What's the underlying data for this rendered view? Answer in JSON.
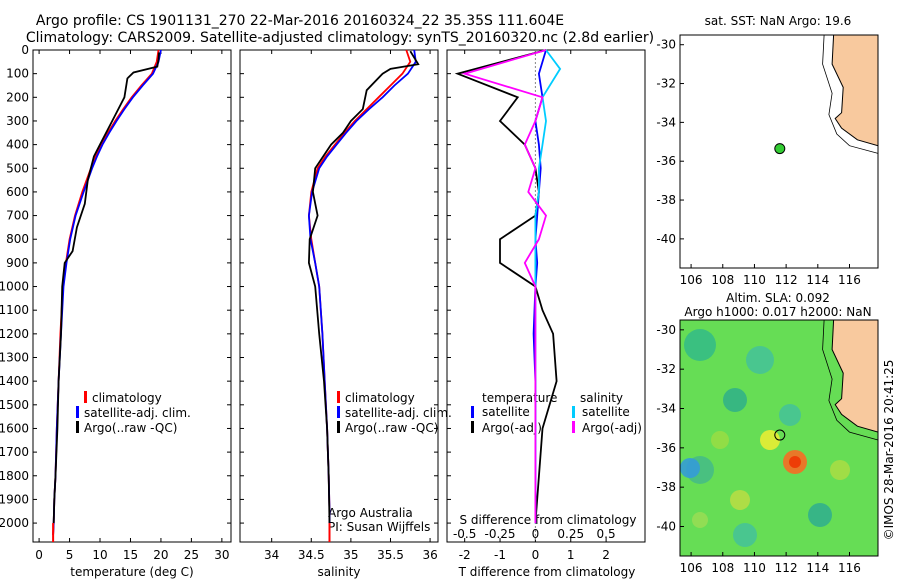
{
  "header": {
    "line1": "Argo profile: CS 1901131_270 22-Mar-2016 20160324_22 35.35S 111.604E",
    "line2": "Climatology: CARS2009. Satellite-adjusted climatology: synTS_20160320.nc (2.8d earlier)"
  },
  "depth_ticks": [
    "0",
    "100",
    "200",
    "300",
    "400",
    "500",
    "600",
    "700",
    "800",
    "900",
    "1000",
    "1100",
    "1200",
    "1300",
    "1400",
    "1500",
    "1600",
    "1700",
    "1800",
    "1900",
    "2000"
  ],
  "colors": {
    "climatology": "#ff0000",
    "satellite": "#0000ff",
    "argo": "#000000",
    "sat_salinity": "#00ccff",
    "argo_salinity": "#ff00ff",
    "land": "#f8c99e",
    "float_marker": "#33cc33"
  },
  "legend": {
    "climatology": "climatology",
    "satellite_adj": "satellite-adj. clim.",
    "argo_raw": "Argo(..raw -QC)",
    "temperature": "temperature",
    "salinity": "salinity",
    "satellite": "satellite",
    "argo_adj": "Argo(-adj)"
  },
  "notes": {
    "agency": "Argo Australia",
    "pi": "PI: Susan Wijffels",
    "s_diff_label": "S difference from climatology",
    "timestamp": "©IMOS 28-Mar-2016 20:41:25"
  },
  "chart_data": [
    {
      "type": "line",
      "xlabel": "temperature (deg C)",
      "xlim": [
        -1,
        31.5
      ],
      "ylim": [
        2080,
        0
      ],
      "xticks": [
        "0",
        "5",
        "10",
        "15",
        "20",
        "25",
        "30"
      ],
      "series": [
        {
          "name": "climatology",
          "x": [
            19.6,
            19.3,
            18.5,
            16.8,
            15.2,
            13.8,
            12.5,
            11.3,
            10.2,
            9.3,
            8.5,
            7.1,
            5.9,
            5.0,
            4.4,
            3.9,
            3.5,
            3.2,
            2.9,
            2.7,
            2.5,
            2.4,
            2.3
          ],
          "y": [
            0,
            50,
            100,
            150,
            200,
            250,
            300,
            350,
            400,
            450,
            500,
            600,
            700,
            800,
            900,
            1000,
            1200,
            1400,
            1600,
            1800,
            1900,
            2000,
            2050
          ]
        },
        {
          "name": "satellite-adj. clim.",
          "x": [
            20.0,
            19.6,
            18.7,
            17.0,
            15.4,
            14.0,
            12.7,
            11.5,
            10.4,
            9.5,
            8.7,
            7.3,
            6.0,
            5.1,
            4.5,
            4.0,
            3.6,
            3.2,
            2.9,
            2.7,
            2.5,
            2.4,
            2.3
          ],
          "y": [
            0,
            50,
            100,
            150,
            200,
            250,
            300,
            350,
            400,
            450,
            500,
            600,
            700,
            800,
            900,
            1000,
            1200,
            1400,
            1600,
            1800,
            1900,
            2000,
            2050
          ]
        },
        {
          "name": "Argo(..raw -QC)",
          "x": [
            19.7,
            19.6,
            19.4,
            15.5,
            14.5,
            14.0,
            12.0,
            11.0,
            10.0,
            9.0,
            8.0,
            7.5,
            6.2,
            5.5,
            4.2,
            3.8,
            3.6,
            3.2,
            3.0,
            2.7,
            2.5,
            2.4
          ],
          "y": [
            10,
            40,
            70,
            95,
            120,
            200,
            300,
            350,
            400,
            450,
            550,
            650,
            750,
            850,
            900,
            1000,
            1200,
            1400,
            1600,
            1800,
            1900,
            2000
          ]
        }
      ]
    },
    {
      "type": "line",
      "xlabel": "salinity",
      "xlim": [
        33.6,
        36.1
      ],
      "ylim": [
        2080,
        0
      ],
      "xticks": [
        "34",
        "34.5",
        "35",
        "35.5",
        "36"
      ],
      "series": [
        {
          "name": "climatology",
          "x": [
            35.7,
            35.75,
            35.65,
            35.5,
            35.35,
            35.2,
            35.05,
            34.92,
            34.8,
            34.68,
            34.58,
            34.5,
            34.47,
            34.5,
            34.55,
            34.6,
            34.64,
            34.67,
            34.7,
            34.72,
            34.73,
            34.73
          ],
          "y": [
            0,
            50,
            100,
            150,
            200,
            250,
            300,
            350,
            400,
            450,
            500,
            600,
            700,
            800,
            900,
            1000,
            1200,
            1400,
            1600,
            1800,
            1950,
            2050
          ]
        },
        {
          "name": "satellite-adj. clim.",
          "x": [
            35.8,
            35.82,
            35.72,
            35.55,
            35.4,
            35.23,
            35.07,
            34.94,
            34.82,
            34.7,
            34.6,
            34.51,
            34.47,
            34.49,
            34.55,
            34.6,
            34.64,
            34.67,
            34.7,
            34.72,
            34.73,
            34.73
          ],
          "y": [
            0,
            50,
            100,
            150,
            200,
            250,
            300,
            350,
            400,
            450,
            500,
            600,
            700,
            800,
            900,
            1000,
            1200,
            1400,
            1600,
            1800,
            1950,
            2050
          ]
        },
        {
          "name": "Argo(..raw -QC)",
          "x": [
            35.75,
            35.85,
            35.5,
            35.4,
            35.2,
            35.15,
            35.0,
            34.9,
            34.75,
            34.65,
            34.55,
            34.52,
            34.58,
            34.48,
            34.47,
            34.55,
            34.6,
            34.66,
            34.7,
            34.72,
            34.73
          ],
          "y": [
            5,
            60,
            80,
            100,
            170,
            250,
            300,
            350,
            400,
            450,
            500,
            600,
            700,
            800,
            900,
            1000,
            1200,
            1400,
            1600,
            1800,
            2000
          ]
        }
      ]
    },
    {
      "type": "line",
      "xlabel": "T difference from climatology",
      "x2label": "S difference from climatology",
      "xlim": [
        -2.5,
        3.1
      ],
      "ylim": [
        2080,
        0
      ],
      "xticks": [
        "-2",
        "-1",
        "0",
        "1",
        "2"
      ],
      "x2ticks": [
        "-0.5",
        "-0.25",
        "0",
        "0.25",
        "0.5"
      ],
      "series": [
        {
          "name": "temperature satellite",
          "x": [
            0.3,
            0.2,
            0.1,
            0.2,
            0.0,
            0.1,
            0.15,
            0.1,
            0.05,
            0.0,
            0.05,
            0.0,
            -0.05,
            0.0,
            0.0,
            0.0
          ],
          "y": [
            0,
            50,
            100,
            200,
            300,
            400,
            500,
            600,
            700,
            800,
            900,
            1000,
            1200,
            1400,
            1600,
            2000
          ]
        },
        {
          "name": "temperature Argo(-adj)",
          "x": [
            0.3,
            -2.2,
            -0.5,
            -1.0,
            -0.3,
            0.0,
            0.1,
            0.0,
            -1.0,
            -1.0,
            0.0,
            0.2,
            0.5,
            0.6,
            0.2,
            0.0
          ],
          "y": [
            0,
            100,
            200,
            300,
            400,
            500,
            600,
            700,
            800,
            900,
            1000,
            1100,
            1200,
            1400,
            1600,
            2000
          ]
        },
        {
          "name": "salinity satellite",
          "x": [
            0.3,
            0.7,
            0.2,
            0.3,
            0.2,
            0.1,
            0.1,
            0.0,
            0.0,
            0.0,
            0.0,
            0.0,
            0.0
          ],
          "y": [
            0,
            80,
            200,
            300,
            400,
            500,
            600,
            700,
            800,
            1000,
            1200,
            1600,
            2000
          ]
        },
        {
          "name": "salinity Argo(-adj)",
          "x": [
            0.3,
            -2.0,
            0.2,
            0.0,
            -0.3,
            0.0,
            -0.2,
            0.3,
            0.1,
            -0.3,
            0.0,
            0.0,
            0.0
          ],
          "y": [
            0,
            100,
            200,
            300,
            400,
            500,
            600,
            700,
            800,
            900,
            1000,
            1400,
            2000
          ]
        }
      ]
    },
    {
      "type": "scatter",
      "title": "sat. SST: NaN Argo: 19.6",
      "xlim": [
        105.3,
        117.8
      ],
      "ylim": [
        -41.5,
        -29.5
      ],
      "xticks": [
        "106",
        "108",
        "110",
        "112",
        "114",
        "116"
      ],
      "yticks": [
        "-30",
        "-32",
        "-34",
        "-36",
        "-38",
        "-40"
      ],
      "points": [
        {
          "x": 111.6,
          "y": -35.35
        }
      ]
    },
    {
      "type": "heatmap",
      "title": "Altim. SLA: 0.092",
      "subtitle": "Argo h1000: 0.017 h2000: NaN",
      "xlim": [
        105.3,
        117.8
      ],
      "ylim": [
        -41.5,
        -29.5
      ],
      "xticks": [
        "106",
        "108",
        "110",
        "112",
        "114",
        "116"
      ],
      "yticks": [
        "-30",
        "-32",
        "-34",
        "-36",
        "-38",
        "-40"
      ],
      "points": [
        {
          "x": 111.6,
          "y": -35.35
        }
      ]
    }
  ]
}
